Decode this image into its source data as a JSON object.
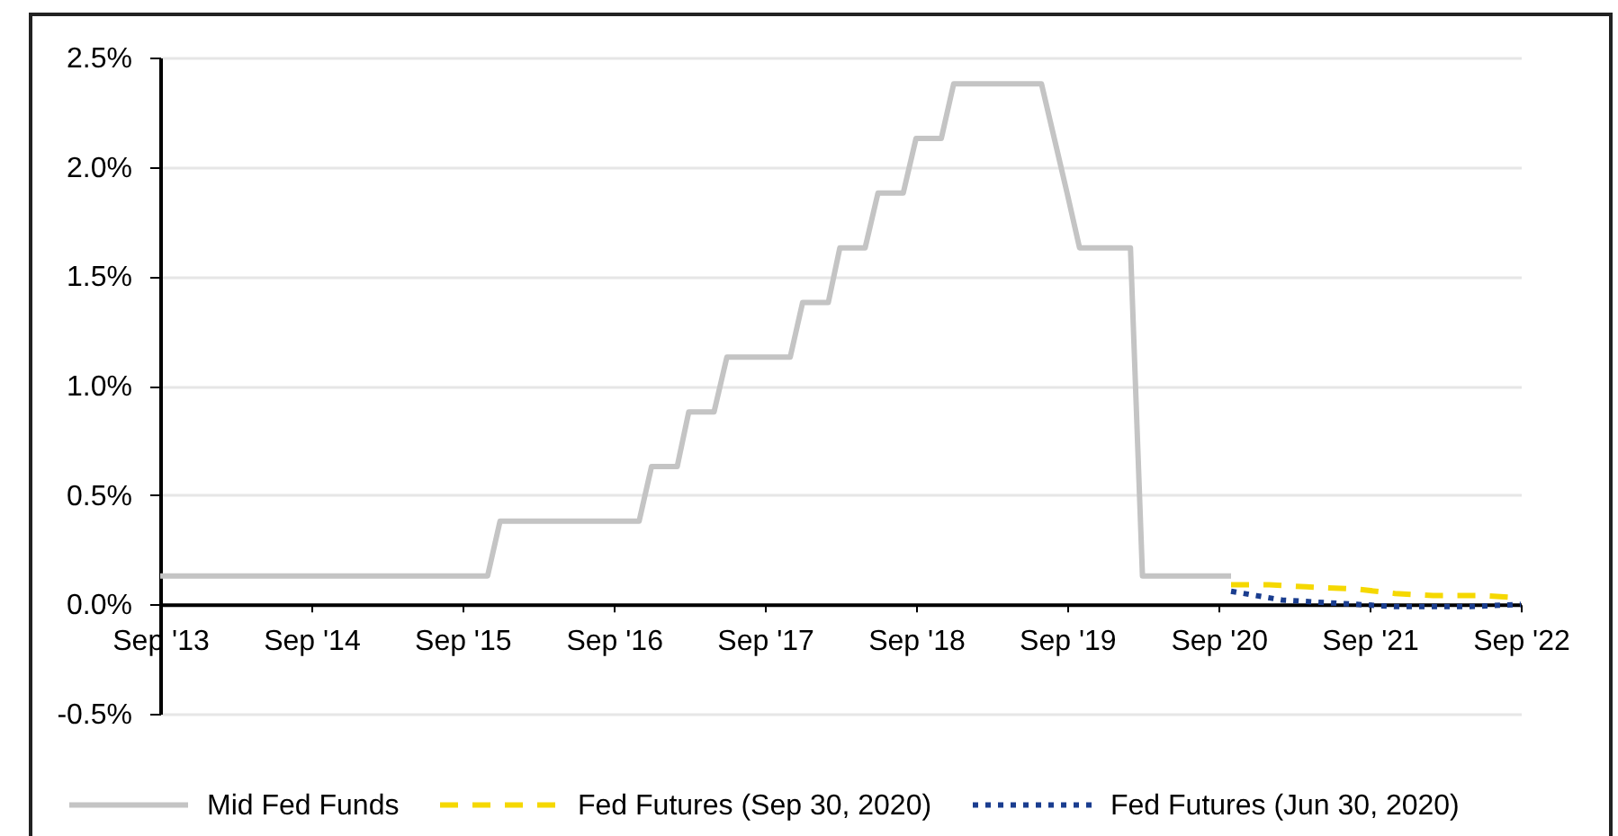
{
  "chart_data": {
    "type": "line",
    "xlim": [
      "2013-09",
      "2022-09"
    ],
    "xticks": [
      {
        "value": "2013-09",
        "label": "Sep '13"
      },
      {
        "value": "2014-09",
        "label": "Sep '14"
      },
      {
        "value": "2015-09",
        "label": "Sep '15"
      },
      {
        "value": "2016-09",
        "label": "Sep '16"
      },
      {
        "value": "2017-09",
        "label": "Sep '17"
      },
      {
        "value": "2018-09",
        "label": "Sep '18"
      },
      {
        "value": "2019-09",
        "label": "Sep '19"
      },
      {
        "value": "2020-09",
        "label": "Sep '20"
      },
      {
        "value": "2021-09",
        "label": "Sep '21"
      },
      {
        "value": "2022-09",
        "label": "Sep '22"
      }
    ],
    "ylim": [
      -0.5,
      2.5
    ],
    "yticks": [
      {
        "value": -0.5,
        "label": "-0.5%"
      },
      {
        "value": 0,
        "label": "0.0%"
      },
      {
        "value": 0.5,
        "label": "0.5%"
      },
      {
        "value": 1,
        "label": "1.0%"
      },
      {
        "value": 1.5,
        "label": "1.5%"
      },
      {
        "value": 2,
        "label": "2.0%"
      },
      {
        "value": 2.5,
        "label": "2.5%"
      }
    ],
    "grid": "y",
    "legend": "bottom",
    "series": [
      {
        "name": "Mid Fed Funds",
        "color": "#c4c4c4",
        "line_style": "solid",
        "x": [
          "2013-09",
          "2015-11",
          "2015-12",
          "2016-11",
          "2016-12",
          "2017-02",
          "2017-03",
          "2017-05",
          "2017-06",
          "2017-11",
          "2017-12",
          "2018-02",
          "2018-03",
          "2018-05",
          "2018-06",
          "2018-08",
          "2018-09",
          "2018-11",
          "2018-12",
          "2019-07",
          "2019-08",
          "2019-09",
          "2019-10",
          "2020-02",
          "2020-03",
          "2020-10"
        ],
        "values": [
          0.13,
          0.13,
          0.38,
          0.38,
          0.63,
          0.63,
          0.88,
          0.88,
          1.13,
          1.13,
          1.38,
          1.38,
          1.63,
          1.63,
          1.88,
          1.88,
          2.13,
          2.13,
          2.38,
          2.38,
          2.13,
          1.88,
          1.63,
          1.63,
          0.13,
          0.13
        ]
      },
      {
        "name": "Fed Futures (Sep 30, 2020)",
        "color": "#f5d800",
        "line_style": "dashed",
        "x": [
          "2020-10",
          "2021-01",
          "2021-04",
          "2021-08",
          "2021-11",
          "2022-02",
          "2022-06",
          "2022-09"
        ],
        "values": [
          0.09,
          0.09,
          0.08,
          0.07,
          0.05,
          0.04,
          0.04,
          0.03
        ]
      },
      {
        "name": "Fed Futures (Jun 30, 2020)",
        "color": "#1a3d8f",
        "line_style": "dotted",
        "x": [
          "2020-10",
          "2020-12",
          "2021-02",
          "2021-05",
          "2021-08",
          "2021-11",
          "2022-05",
          "2022-09"
        ],
        "values": [
          0.06,
          0.04,
          0.02,
          0.01,
          0,
          -0.01,
          -0.01,
          0
        ]
      }
    ]
  }
}
